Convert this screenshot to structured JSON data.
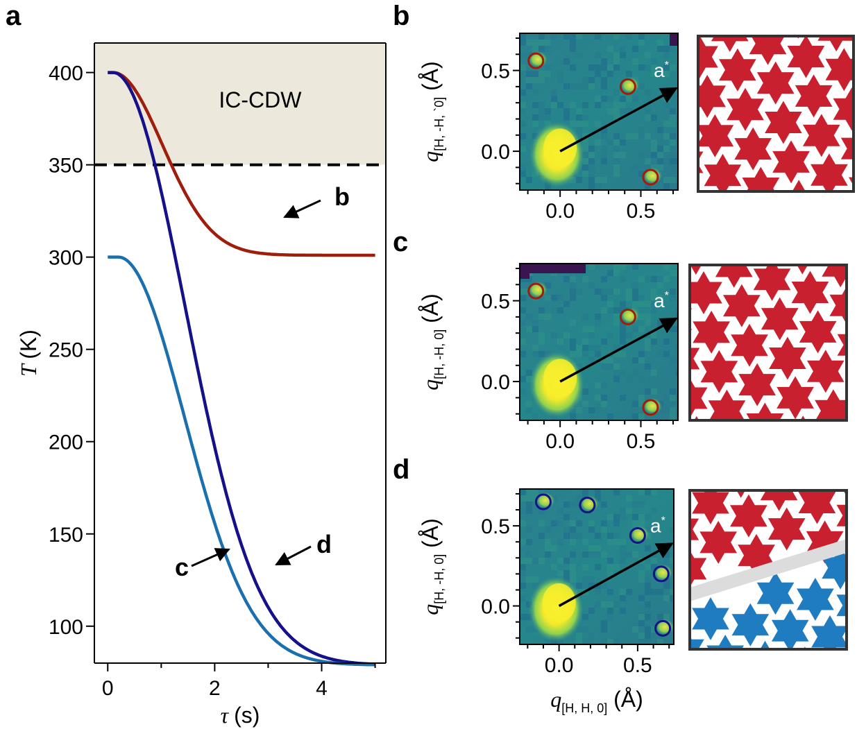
{
  "panel_labels": {
    "a": "a",
    "b": "b",
    "c": "c",
    "d": "d"
  },
  "chart_data": [
    {
      "type": "line",
      "panel": "a",
      "xlabel_symbol": "τ",
      "xlabel_unit": "(s)",
      "ylabel_symbol": "T",
      "ylabel_unit": "(K)",
      "xlim": [
        -0.25,
        5.2
      ],
      "ylim": [
        80,
        416
      ],
      "xticks": [
        0,
        2,
        4
      ],
      "yticks": [
        100,
        150,
        200,
        250,
        300,
        350,
        400
      ],
      "shaded_region": {
        "label": "IC-CDW",
        "y_from": 350,
        "y_to": 416,
        "color": "#ece9dc"
      },
      "threshold_line": {
        "y": 350,
        "style": "dashed"
      },
      "series": [
        {
          "name": "b",
          "color": "#a11d0b",
          "start": 400,
          "end": 301,
          "t0": 0.1,
          "tau": 1.3
        },
        {
          "name": "d",
          "color": "#14118a",
          "start": 400,
          "end": 79,
          "t0": 0.1,
          "tau": 1.9
        },
        {
          "name": "c",
          "color": "#1a6fae",
          "start": 300,
          "end": 79,
          "t0": 0.2,
          "tau": 1.75
        }
      ],
      "annotations": [
        {
          "label": "b",
          "series": "b"
        },
        {
          "label": "c",
          "series": "c"
        },
        {
          "label": "d",
          "series": "d"
        }
      ]
    },
    {
      "type": "heatmap",
      "panel": "b",
      "ylabel_main": "q",
      "ylabel_sub": "[H, -H, `0]",
      "ylabel_unit": "(Å)",
      "xticks": [
        0.0,
        0.5
      ],
      "yticks": [
        0.0,
        0.5
      ],
      "vector_label": "a",
      "vector_sup": "*",
      "peaks": [
        [
          -0.15,
          0.56
        ],
        [
          0.42,
          0.4
        ],
        [
          0.56,
          -0.16
        ]
      ],
      "peak_color": "#a11d0b",
      "domain_pattern": "single red Star-of-David domain"
    },
    {
      "type": "heatmap",
      "panel": "c",
      "ylabel_main": "q",
      "ylabel_sub": "[H, -H, 0]",
      "ylabel_unit": "(Å)",
      "xticks": [
        0.0,
        0.5
      ],
      "yticks": [
        0.0,
        0.5
      ],
      "vector_label": "a",
      "vector_sup": "*",
      "peaks": [
        [
          -0.15,
          0.56
        ],
        [
          0.42,
          0.4
        ],
        [
          0.56,
          -0.16
        ]
      ],
      "peak_color": "#a11d0b",
      "domain_pattern": "single red Star-of-David domain"
    },
    {
      "type": "heatmap",
      "panel": "d",
      "ylabel_main": "q",
      "ylabel_sub": "[H, -H, 0]",
      "ylabel_unit": "(Å)",
      "xlabel_main": "q",
      "xlabel_sub": "[H, H, 0]",
      "xlabel_unit": "(Å)",
      "xticks": [
        0.0,
        0.5
      ],
      "yticks": [
        0.0,
        0.5
      ],
      "vector_label": "a",
      "vector_sup": "*",
      "peaks": [
        [
          -0.1,
          0.65
        ],
        [
          0.18,
          0.63
        ],
        [
          0.5,
          0.44
        ],
        [
          0.65,
          0.2
        ],
        [
          0.66,
          -0.14
        ]
      ],
      "peak_color": "#14118a",
      "domain_pattern": "red and blue Star-of-David domains separated by a wall"
    }
  ],
  "colors": {
    "red_domain": "#c8202e",
    "blue_domain": "#1f7cc1",
    "wall": "#dcdcdc"
  }
}
